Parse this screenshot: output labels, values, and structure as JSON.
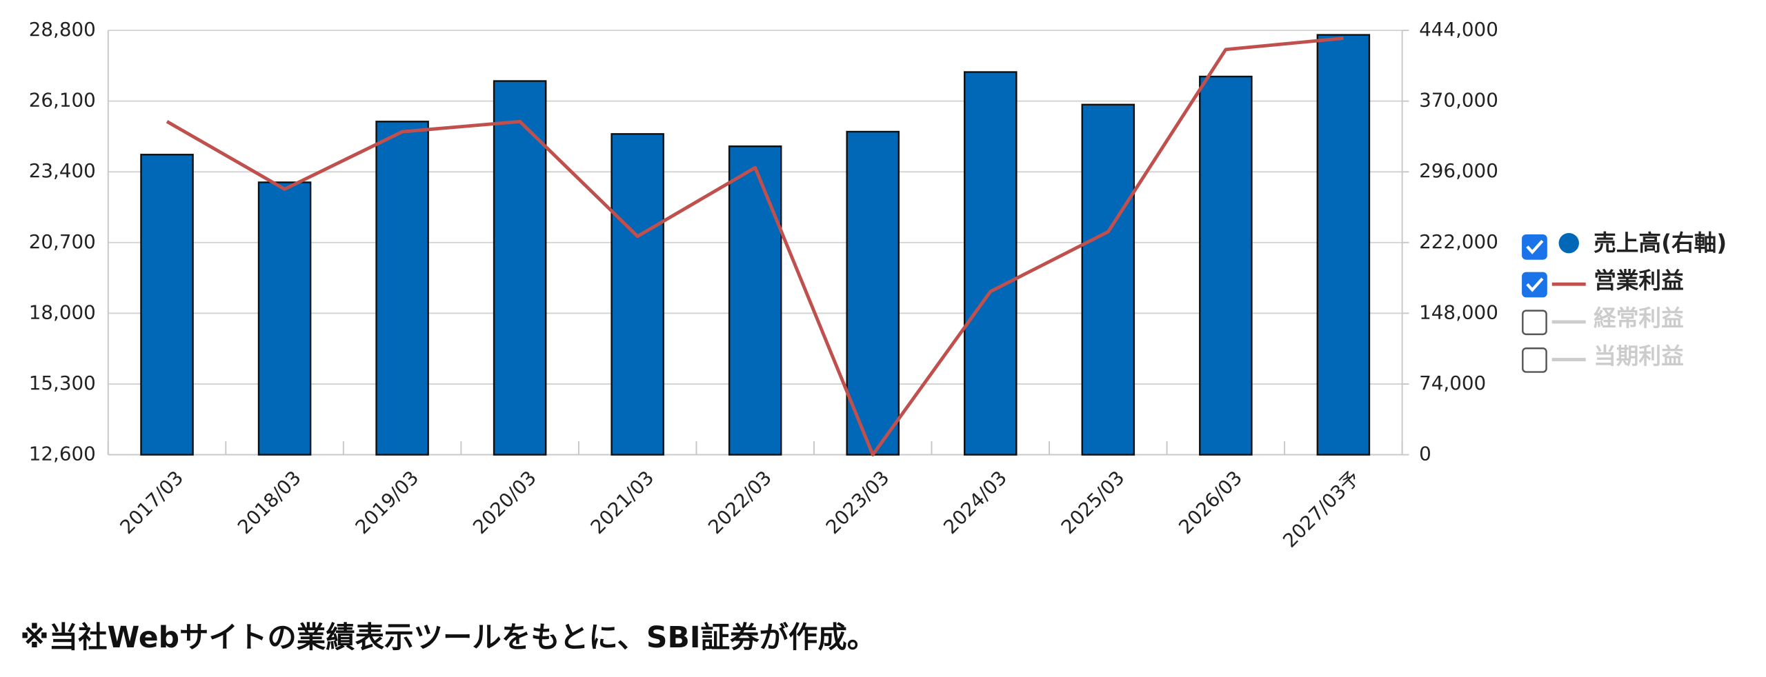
{
  "chart_data": {
    "type": "bar_line",
    "categories": [
      "2017/03",
      "2018/03",
      "2019/03",
      "2020/03",
      "2021/03",
      "2022/03",
      "2023/03",
      "2024/03",
      "2025/03",
      "2026/03",
      "2027/03予"
    ],
    "series": [
      {
        "name": "売上高(右軸)",
        "type": "bar",
        "axis": "y2",
        "color": "#0068b7",
        "checked": true,
        "values": [
          314000,
          285000,
          348600,
          391000,
          335600,
          322700,
          338000,
          400400,
          366300,
          395700,
          439300
        ]
      },
      {
        "name": "営業利益",
        "type": "line",
        "color": "#c0504d",
        "checked": true,
        "values": [
          25320,
          22740,
          24930,
          25320,
          20940,
          23560,
          12600,
          18830,
          21110,
          28070,
          28500
        ]
      },
      {
        "name": "経常利益",
        "type": "line",
        "color": "#cccccc",
        "checked": false,
        "values": [
          null,
          null,
          null,
          null,
          null,
          null,
          null,
          null,
          null,
          null,
          null
        ]
      },
      {
        "name": "当期利益",
        "type": "line",
        "color": "#cccccc",
        "checked": false,
        "values": [
          null,
          null,
          null,
          null,
          null,
          null,
          null,
          null,
          null,
          null,
          null
        ]
      }
    ],
    "ylim": [
      12600,
      28800
    ],
    "yticks": [
      {
        "value": 12600,
        "label": "12,600"
      },
      {
        "value": 15300,
        "label": "15,300"
      },
      {
        "value": 18000,
        "label": "18,000"
      },
      {
        "value": 20700,
        "label": "20,700"
      },
      {
        "value": 23400,
        "label": "23,400"
      },
      {
        "value": 26100,
        "label": "26,100"
      },
      {
        "value": 28800,
        "label": "28,800"
      }
    ],
    "y2lim": [
      0,
      444000
    ],
    "y2ticks": [
      0,
      {
        "value": 74000,
        "label": "74,000"
      },
      {
        "value": 148000,
        "label": "148,000"
      },
      {
        "value": 222000,
        "label": "222,000"
      },
      {
        "value": 296000,
        "label": "296,000"
      },
      {
        "value": 370000,
        "label": "370,000"
      },
      {
        "value": 444000,
        "label": "444,000"
      }
    ],
    "grid": true,
    "legend": "right"
  },
  "footnote": "※当社Webサイトの業績表示ツールをもとに、SBI証券が作成。"
}
